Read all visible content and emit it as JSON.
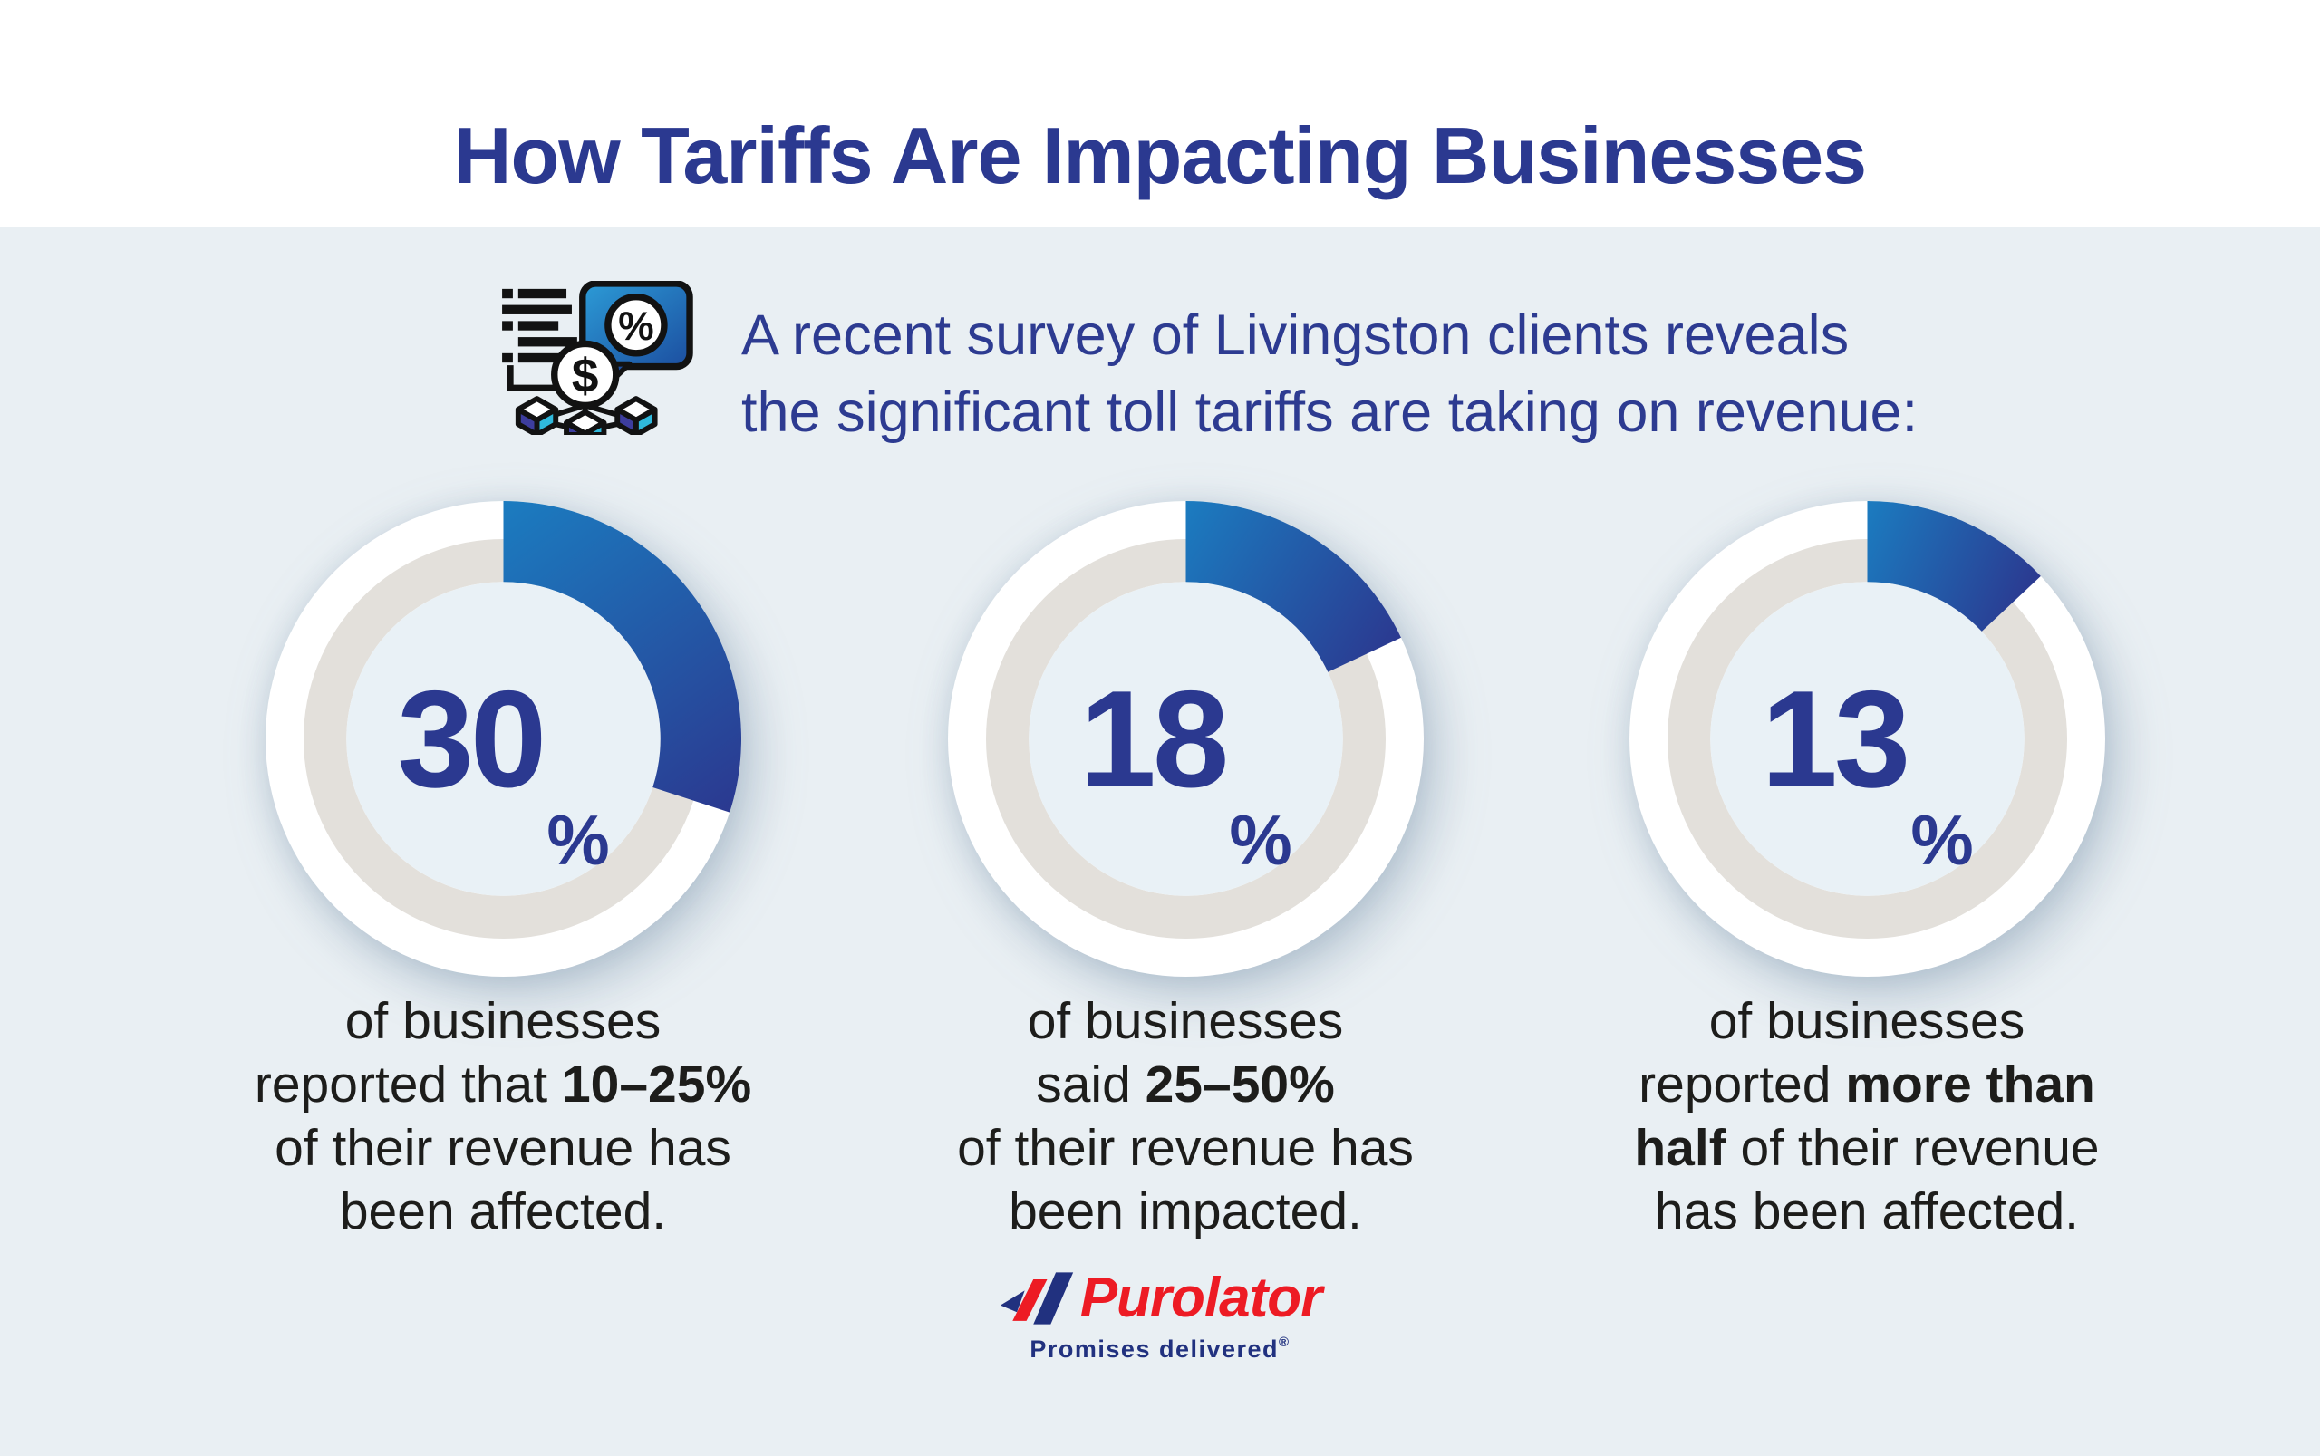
{
  "page": {
    "title": "How Tariffs Are Impacting Businesses",
    "band_color": "#E9EFF3",
    "title_color": "#2B3990"
  },
  "intro": {
    "icon": "survey-report-money-network-icon",
    "line1": "A recent survey of Livingston clients reveals",
    "line2": "the significant toll tariffs are taking on revenue:"
  },
  "chart_data": {
    "type": "donut",
    "units": "percent",
    "arc_start": "top",
    "direction": "clockwise",
    "colors": {
      "arc_gradient_start": "#1B7CC0",
      "arc_gradient_end": "#2B3990",
      "track": "#E3E0DB",
      "outer_ring": "#FFFFFF",
      "center_fill": "#E9F1F6",
      "number": "#2B3990"
    },
    "series": [
      {
        "value": 30,
        "number": "30",
        "percent_sign": "%",
        "caption_plain": "of businesses reported that 10–25% of their revenue has been affected.",
        "caption_html": "of businesses<br>reported that <b>10–25%</b><br>of their revenue has<br>been affected."
      },
      {
        "value": 18,
        "number": "18",
        "percent_sign": "%",
        "caption_plain": "of businesses said 25–50% of their revenue has been impacted.",
        "caption_html": "of businesses<br>said <b>25–50%</b><br>of their revenue has<br>been impacted."
      },
      {
        "value": 13,
        "number": "13",
        "percent_sign": "%",
        "caption_plain": "of businesses reported more than half of their revenue has been affected.",
        "caption_html": "of businesses<br>reported <b>more than</b><br><b>half</b> of their revenue<br>has been affected."
      }
    ]
  },
  "footer": {
    "brand": "Purolator",
    "tagline": "Promises delivered",
    "registered_mark": "®",
    "brand_red": "#ED1B24",
    "brand_navy": "#21317F"
  }
}
